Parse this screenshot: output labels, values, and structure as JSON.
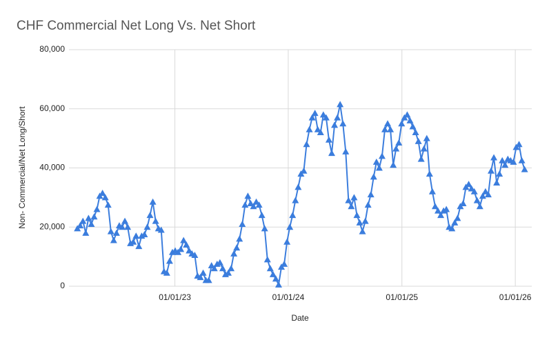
{
  "chart_data": {
    "type": "line",
    "title": "CHF Commercial Net Long Vs. Net Short",
    "x_label": "Date",
    "y_label": "Non- Commercial/Net Long/Short",
    "color": "#3b7ddd",
    "grid": true,
    "marker": "triangle",
    "xlim": [
      "2022-01-25",
      "2026-02-23"
    ],
    "xticks": [
      {
        "value": "2023-01-01",
        "label": "01/01/23"
      },
      {
        "value": "2024-01-01",
        "label": "01/01/24"
      },
      {
        "value": "2025-01-01",
        "label": "01/01/25"
      },
      {
        "value": "2026-01-01",
        "label": "01/01/26"
      }
    ],
    "ylim": [
      0,
      80000
    ],
    "yticks": [
      0,
      {
        "value": 20000,
        "label": "20,000"
      },
      {
        "value": 40000,
        "label": "40,000"
      },
      {
        "value": 60000,
        "label": "60,000"
      },
      {
        "value": 80000,
        "label": "80,000"
      }
    ],
    "x": [
      "2022-02-21",
      "2022-03-02",
      "2022-03-11",
      "2022-03-20",
      "2022-03-29",
      "2022-04-07",
      "2022-04-16",
      "2022-04-25",
      "2022-05-04",
      "2022-05-13",
      "2022-05-22",
      "2022-05-31",
      "2022-06-09",
      "2022-06-18",
      "2022-06-27",
      "2022-07-06",
      "2022-07-15",
      "2022-07-24",
      "2022-08-02",
      "2022-08-11",
      "2022-08-20",
      "2022-08-29",
      "2022-09-07",
      "2022-09-16",
      "2022-09-25",
      "2022-10-04",
      "2022-10-13",
      "2022-10-22",
      "2022-10-31",
      "2022-11-09",
      "2022-11-18",
      "2022-11-27",
      "2022-12-06",
      "2022-12-15",
      "2022-12-24",
      "2023-01-02",
      "2023-01-11",
      "2023-01-20",
      "2023-01-29",
      "2023-02-07",
      "2023-02-16",
      "2023-02-25",
      "2023-03-06",
      "2023-03-15",
      "2023-03-24",
      "2023-04-02",
      "2023-04-11",
      "2023-04-20",
      "2023-04-29",
      "2023-05-08",
      "2023-05-17",
      "2023-05-26",
      "2023-06-04",
      "2023-06-13",
      "2023-06-22",
      "2023-07-01",
      "2023-07-10",
      "2023-07-19",
      "2023-07-28",
      "2023-08-06",
      "2023-08-15",
      "2023-08-24",
      "2023-09-02",
      "2023-09-11",
      "2023-09-20",
      "2023-09-29",
      "2023-10-08",
      "2023-10-17",
      "2023-10-26",
      "2023-11-04",
      "2023-11-13",
      "2023-11-22",
      "2023-12-01",
      "2023-12-10",
      "2023-12-19",
      "2023-12-28",
      "2024-01-06",
      "2024-01-15",
      "2024-01-24",
      "2024-02-02",
      "2024-02-11",
      "2024-02-20",
      "2024-02-29",
      "2024-03-09",
      "2024-03-18",
      "2024-03-27",
      "2024-04-05",
      "2024-04-14",
      "2024-04-23",
      "2024-05-02",
      "2024-05-11",
      "2024-05-20",
      "2024-05-29",
      "2024-06-07",
      "2024-06-16",
      "2024-06-25",
      "2024-07-04",
      "2024-07-13",
      "2024-07-22",
      "2024-07-31",
      "2024-08-09",
      "2024-08-18",
      "2024-08-27",
      "2024-09-05",
      "2024-09-14",
      "2024-09-23",
      "2024-10-02",
      "2024-10-11",
      "2024-10-20",
      "2024-10-29",
      "2024-11-07",
      "2024-11-16",
      "2024-11-25",
      "2024-12-04",
      "2024-12-13",
      "2024-12-22",
      "2024-12-31",
      "2025-01-09",
      "2025-01-18",
      "2025-01-27",
      "2025-02-05",
      "2025-02-14",
      "2025-02-23",
      "2025-03-04",
      "2025-03-13",
      "2025-03-22",
      "2025-03-31",
      "2025-04-09",
      "2025-04-18",
      "2025-04-27",
      "2025-05-06",
      "2025-05-15",
      "2025-05-24",
      "2025-06-02",
      "2025-06-11",
      "2025-06-20",
      "2025-06-29",
      "2025-07-08",
      "2025-07-17",
      "2025-07-26",
      "2025-08-04",
      "2025-08-13",
      "2025-08-22",
      "2025-08-31",
      "2025-09-09",
      "2025-09-18",
      "2025-09-27",
      "2025-10-06",
      "2025-10-15",
      "2025-10-24",
      "2025-11-02",
      "2025-11-11",
      "2025-11-20",
      "2025-11-29",
      "2025-12-08",
      "2025-12-17",
      "2025-12-26",
      "2026-01-04",
      "2026-01-13",
      "2026-01-22",
      "2026-01-31"
    ],
    "values": [
      19500,
      20500,
      22000,
      18000,
      23000,
      21000,
      23500,
      26000,
      30500,
      31500,
      30000,
      27500,
      18500,
      15500,
      18000,
      20500,
      20000,
      22000,
      20000,
      14500,
      15000,
      17000,
      13500,
      17000,
      17500,
      20000,
      24000,
      28500,
      22000,
      19500,
      19000,
      5000,
      4500,
      8500,
      11500,
      12000,
      11500,
      12500,
      15500,
      14000,
      12000,
      11000,
      10500,
      3500,
      3000,
      4500,
      2000,
      2000,
      7000,
      6000,
      7500,
      8000,
      6000,
      4000,
      4500,
      6000,
      11000,
      13000,
      16000,
      21000,
      27500,
      30500,
      28000,
      27000,
      28500,
      27500,
      24000,
      19500,
      9000,
      6000,
      4000,
      2500,
      500,
      6500,
      7500,
      15000,
      20000,
      24000,
      29000,
      33500,
      38000,
      39000,
      48000,
      53000,
      57000,
      58500,
      53000,
      52000,
      58000,
      57000,
      49500,
      45000,
      54500,
      57000,
      61500,
      55000,
      45500,
      29000,
      27000,
      30000,
      24000,
      21500,
      18500,
      22000,
      27500,
      31000,
      37000,
      42000,
      40000,
      44000,
      53000,
      55000,
      53000,
      41000,
      46500,
      48500,
      55000,
      57000,
      58000,
      56000,
      54000,
      52000,
      49000,
      43000,
      46500,
      50000,
      38000,
      32000,
      27000,
      25500,
      24000,
      25500,
      26000,
      20000,
      19500,
      21500,
      23000,
      27000,
      28000,
      33500,
      34500,
      33000,
      32000,
      29000,
      27000,
      30500,
      32000,
      31000,
      39000,
      43500,
      35000,
      38000,
      42500,
      41000,
      43000,
      42500,
      42000,
      47000,
      48000,
      42500,
      39500
    ]
  }
}
